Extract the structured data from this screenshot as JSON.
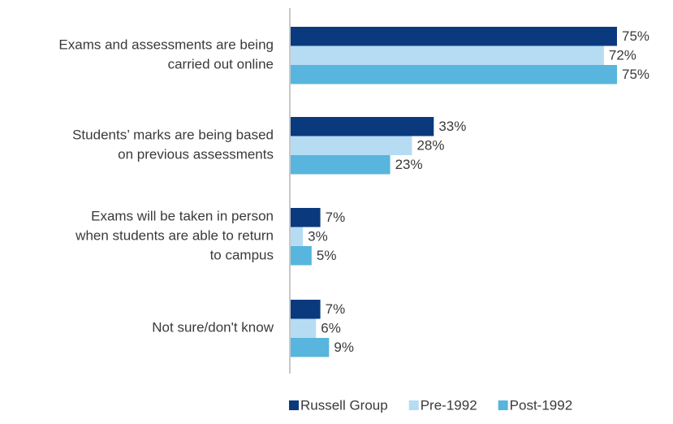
{
  "chart_data": {
    "type": "bar",
    "orientation": "horizontal",
    "categories": [
      "Exams and assessments are being carried out online",
      "Students’ marks are being based on previous assessments",
      "Exams will be taken in person when students are able to return to campus",
      "Not sure/don't know"
    ],
    "series": [
      {
        "name": "Russell Group",
        "color": "#0a3a7d",
        "values": [
          75,
          33,
          7,
          7
        ],
        "value_labels": [
          "75%",
          "33%",
          "7%",
          "7%"
        ]
      },
      {
        "name": "Pre-1992",
        "color": "#b5dcf3",
        "values": [
          72,
          28,
          3,
          6
        ],
        "value_labels": [
          "72%",
          "28%",
          "3%",
          "6%"
        ]
      },
      {
        "name": "Post-1992",
        "color": "#58b5dd",
        "values": [
          75,
          23,
          5,
          9
        ],
        "value_labels": [
          "75%",
          "23%",
          "5%",
          "9%"
        ]
      }
    ],
    "xlim": [
      0,
      75
    ],
    "legend": "bottom"
  }
}
